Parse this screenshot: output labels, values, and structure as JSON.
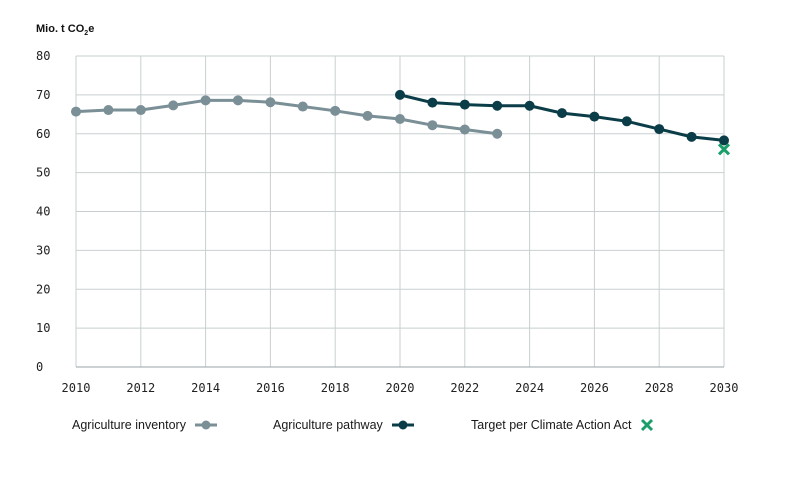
{
  "chart_data": {
    "type": "line",
    "ylabel": "Mio. t CO",
    "ylabel_sub": "2",
    "ylabel_suffix": "e",
    "xlim": [
      2010,
      2030
    ],
    "ylim": [
      0,
      80
    ],
    "x_ticks": [
      "2010",
      "2012",
      "2014",
      "2016",
      "2018",
      "2020",
      "2022",
      "2024",
      "2026",
      "2028",
      "2030"
    ],
    "y_ticks": [
      "0",
      "10",
      "20",
      "30",
      "40",
      "50",
      "60",
      "70",
      "80"
    ],
    "grid": true,
    "legend_position": "bottom",
    "series": [
      {
        "name": "Agriculture inventory",
        "color": "#7a8f96",
        "marker": "circle",
        "x": [
          2010,
          2011,
          2012,
          2013,
          2014,
          2015,
          2016,
          2017,
          2018,
          2019,
          2020,
          2021,
          2022,
          2023
        ],
        "values": [
          65.7,
          66.1,
          66.1,
          67.3,
          68.6,
          68.6,
          68.1,
          67.0,
          65.9,
          64.6,
          63.8,
          62.2,
          61.1,
          60.0
        ]
      },
      {
        "name": "Agriculture pathway",
        "color": "#0b3d48",
        "marker": "circle",
        "x": [
          2020,
          2021,
          2022,
          2023,
          2024,
          2025,
          2026,
          2027,
          2028,
          2029,
          2030
        ],
        "values": [
          70.0,
          68.0,
          67.5,
          67.2,
          67.2,
          65.3,
          64.4,
          63.2,
          61.2,
          59.2,
          58.3
        ]
      },
      {
        "name": "Target per Climate Action Act",
        "color": "#1a9e6a",
        "marker": "x",
        "x": [
          2030
        ],
        "values": [
          56.0
        ]
      }
    ]
  },
  "legend": {
    "inventory": "Agriculture inventory",
    "pathway": "Agriculture pathway",
    "target": "Target per Climate Action Act"
  }
}
